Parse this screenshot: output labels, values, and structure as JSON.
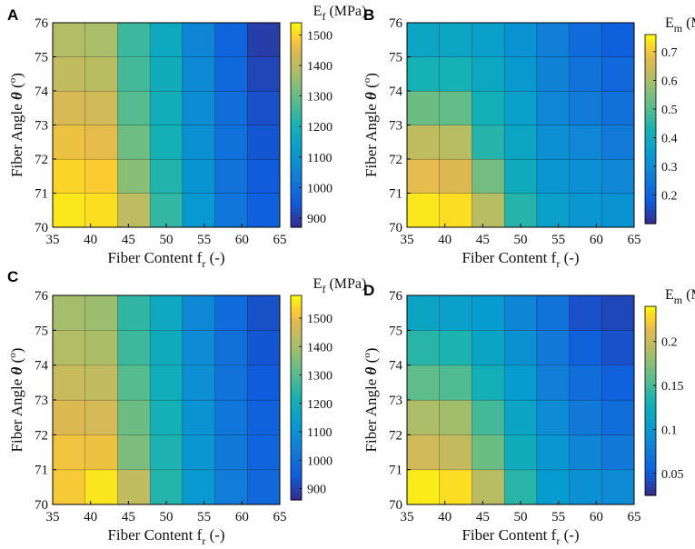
{
  "chart_data": [
    {
      "panel": "A",
      "type": "heatmap",
      "xlabel_main": "Fiber Content f",
      "xlabel_sub": "r",
      "xlabel_tail": " (-)",
      "ylabel_main": "Fiber Angle ",
      "ylabel_theta": "θ",
      "ylabel_open": " (",
      "ylabel_sup": "o",
      "ylabel_close": ")",
      "xticks": [
        "35",
        "40",
        "45",
        "50",
        "55",
        "60",
        "65"
      ],
      "yticks": [
        "70",
        "71",
        "72",
        "73",
        "74",
        "75",
        "76"
      ],
      "x_edges": [
        35,
        40,
        45,
        50,
        55,
        60,
        65
      ],
      "y_edges": [
        70,
        71,
        72,
        73,
        74,
        75,
        76
      ],
      "values": [
        [
          1520,
          1510,
          1405,
          1240,
          1110,
          1020,
          960
        ],
        [
          1500,
          1490,
          1340,
          1220,
          1100,
          1010,
          950
        ],
        [
          1470,
          1460,
          1310,
          1200,
          1090,
          1005,
          940
        ],
        [
          1440,
          1430,
          1280,
          1190,
          1080,
          995,
          930
        ],
        [
          1410,
          1400,
          1260,
          1180,
          1070,
          985,
          915
        ],
        [
          1390,
          1380,
          1250,
          1170,
          1060,
          975,
          900
        ]
      ],
      "clim": [
        870,
        1540
      ],
      "colorbar_ticks": [
        900,
        1000,
        1100,
        1200,
        1300,
        1400,
        1500
      ],
      "colorbar_ticklabels": [
        "900",
        "1000",
        "1100",
        "1200",
        "1300",
        "1400",
        "1500"
      ],
      "colorbar_title_main": "E",
      "colorbar_title_sub": "f",
      "colorbar_title_unit": " (MPa)"
    },
    {
      "panel": "B",
      "type": "heatmap",
      "xlabel_main": "Fiber Content f",
      "xlabel_sub": "r",
      "xlabel_tail": " (-)",
      "ylabel_main": "Fiber Angle ",
      "ylabel_theta": "θ",
      "ylabel_open": " (",
      "ylabel_sup": "o",
      "ylabel_close": ")",
      "xticks": [
        "35",
        "40",
        "45",
        "50",
        "55",
        "60",
        "65"
      ],
      "yticks": [
        "70",
        "71",
        "72",
        "73",
        "74",
        "75",
        "76"
      ],
      "x_edges": [
        35,
        40,
        45,
        50,
        55,
        60,
        65
      ],
      "y_edges": [
        70,
        71,
        72,
        73,
        74,
        75,
        76
      ],
      "values": [
        [
          0.74,
          0.73,
          0.62,
          0.45,
          0.36,
          0.33,
          0.32
        ],
        [
          0.68,
          0.67,
          0.54,
          0.4,
          0.33,
          0.31,
          0.29
        ],
        [
          0.63,
          0.62,
          0.45,
          0.38,
          0.31,
          0.29,
          0.26
        ],
        [
          0.53,
          0.52,
          0.42,
          0.36,
          0.29,
          0.26,
          0.23
        ],
        [
          0.43,
          0.43,
          0.39,
          0.34,
          0.28,
          0.24,
          0.21
        ],
        [
          0.38,
          0.38,
          0.36,
          0.32,
          0.27,
          0.22,
          0.19
        ]
      ],
      "clim": [
        0.1,
        0.76
      ],
      "colorbar_ticks": [
        0.2,
        0.3,
        0.4,
        0.5,
        0.6,
        0.7
      ],
      "colorbar_ticklabels": [
        "0.2",
        "0.3",
        "0.4",
        "0.5",
        "0.6",
        "0.7"
      ],
      "colorbar_title_main": "E",
      "colorbar_title_sub": "m",
      "colorbar_title_unit": " (MPa)"
    },
    {
      "panel": "C",
      "type": "heatmap",
      "xlabel_main": "Fiber Content f",
      "xlabel_sub": "r",
      "xlabel_tail": " (-)",
      "ylabel_main": "Fiber Angle ",
      "ylabel_theta": "θ",
      "ylabel_open": " (",
      "ylabel_sup": "o",
      "ylabel_close": ")",
      "xticks": [
        "35",
        "40",
        "45",
        "50",
        "55",
        "60",
        "65"
      ],
      "yticks": [
        "70",
        "71",
        "72",
        "73",
        "74",
        "75",
        "76"
      ],
      "x_edges": [
        35,
        40,
        45,
        50,
        55,
        60,
        65
      ],
      "y_edges": [
        70,
        71,
        72,
        73,
        74,
        75,
        76
      ],
      "values": [
        [
          1520,
          1555,
          1440,
          1240,
          1120,
          1040,
          980
        ],
        [
          1510,
          1505,
          1350,
          1230,
          1110,
          1030,
          970
        ],
        [
          1480,
          1470,
          1330,
          1215,
          1100,
          1020,
          960
        ],
        [
          1450,
          1440,
          1300,
          1200,
          1090,
          1010,
          950
        ],
        [
          1420,
          1410,
          1270,
          1190,
          1080,
          1000,
          935
        ],
        [
          1400,
          1390,
          1255,
          1180,
          1070,
          990,
          925
        ]
      ],
      "clim": [
        860,
        1580
      ],
      "colorbar_ticks": [
        900,
        1000,
        1100,
        1200,
        1300,
        1400,
        1500
      ],
      "colorbar_ticklabels": [
        "900",
        "1000",
        "1100",
        "1200",
        "1300",
        "1400",
        "1500"
      ],
      "colorbar_title_main": "E",
      "colorbar_title_sub": "f",
      "colorbar_title_unit": " (MPa)"
    },
    {
      "panel": "D",
      "type": "heatmap",
      "xlabel_main": "Fiber Content f",
      "xlabel_sub": "r",
      "xlabel_tail": " (-)",
      "ylabel_main": "Fiber Angle ",
      "ylabel_theta": "θ",
      "ylabel_open": " (",
      "ylabel_sup": "o",
      "ylabel_close": ")",
      "xticks": [
        "35",
        "40",
        "45",
        "50",
        "55",
        "60",
        "65"
      ],
      "yticks": [
        "70",
        "71",
        "72",
        "73",
        "74",
        "75",
        "76"
      ],
      "x_edges": [
        35,
        40,
        45,
        50,
        55,
        60,
        65
      ],
      "y_edges": [
        70,
        71,
        72,
        73,
        74,
        75,
        76
      ],
      "values": [
        [
          0.235,
          0.23,
          0.195,
          0.14,
          0.105,
          0.095,
          0.09
        ],
        [
          0.205,
          0.2,
          0.165,
          0.125,
          0.1,
          0.085,
          0.075
        ],
        [
          0.19,
          0.185,
          0.15,
          0.115,
          0.09,
          0.075,
          0.065
        ],
        [
          0.16,
          0.155,
          0.13,
          0.105,
          0.08,
          0.065,
          0.055
        ],
        [
          0.14,
          0.135,
          0.115,
          0.095,
          0.075,
          0.055,
          0.045
        ],
        [
          0.115,
          0.11,
          0.105,
          0.085,
          0.07,
          0.045,
          0.04
        ]
      ],
      "clim": [
        0.025,
        0.24
      ],
      "colorbar_ticks": [
        0.05,
        0.1,
        0.15,
        0.2
      ],
      "colorbar_ticklabels": [
        "0.05",
        "0.1",
        "0.15",
        "0.2"
      ],
      "colorbar_title_main": "E",
      "colorbar_title_sub": "m",
      "colorbar_title_unit": " (MPa)"
    }
  ]
}
